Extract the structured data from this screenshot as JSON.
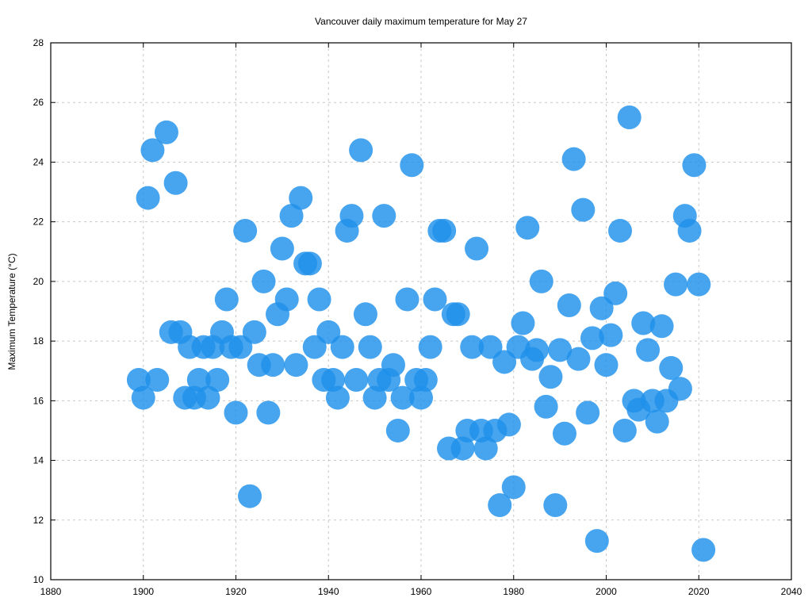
{
  "chart_data": {
    "type": "scatter",
    "title": "Vancouver daily maximum temperature for May 27",
    "xlabel": "",
    "ylabel": "Maximum Temperature (°C)",
    "xlim": [
      1880,
      2040
    ],
    "ylim": [
      10,
      28
    ],
    "xticks": [
      1880,
      1900,
      1920,
      1940,
      1960,
      1980,
      2000,
      2020,
      2040
    ],
    "yticks": [
      10,
      12,
      14,
      16,
      18,
      20,
      22,
      24,
      26,
      28
    ],
    "grid": true,
    "legend": "none",
    "marker_color": "#1e90ea",
    "points": [
      {
        "x": 1899,
        "y": 16.7
      },
      {
        "x": 1900,
        "y": 16.1
      },
      {
        "x": 1901,
        "y": 22.8
      },
      {
        "x": 1902,
        "y": 24.4
      },
      {
        "x": 1903,
        "y": 16.7
      },
      {
        "x": 1905,
        "y": 25.0
      },
      {
        "x": 1906,
        "y": 18.3
      },
      {
        "x": 1907,
        "y": 23.3
      },
      {
        "x": 1908,
        "y": 18.3
      },
      {
        "x": 1909,
        "y": 16.1
      },
      {
        "x": 1910,
        "y": 17.8
      },
      {
        "x": 1911,
        "y": 16.1
      },
      {
        "x": 1912,
        "y": 16.7
      },
      {
        "x": 1913,
        "y": 17.8
      },
      {
        "x": 1914,
        "y": 16.1
      },
      {
        "x": 1915,
        "y": 17.8
      },
      {
        "x": 1916,
        "y": 16.7
      },
      {
        "x": 1917,
        "y": 18.3
      },
      {
        "x": 1918,
        "y": 19.4
      },
      {
        "x": 1919,
        "y": 17.8
      },
      {
        "x": 1920,
        "y": 15.6
      },
      {
        "x": 1921,
        "y": 17.8
      },
      {
        "x": 1922,
        "y": 21.7
      },
      {
        "x": 1923,
        "y": 12.8
      },
      {
        "x": 1924,
        "y": 18.3
      },
      {
        "x": 1925,
        "y": 17.2
      },
      {
        "x": 1926,
        "y": 20.0
      },
      {
        "x": 1927,
        "y": 15.6
      },
      {
        "x": 1928,
        "y": 17.2
      },
      {
        "x": 1929,
        "y": 18.9
      },
      {
        "x": 1930,
        "y": 21.1
      },
      {
        "x": 1931,
        "y": 19.4
      },
      {
        "x": 1932,
        "y": 22.2
      },
      {
        "x": 1933,
        "y": 17.2
      },
      {
        "x": 1934,
        "y": 22.8
      },
      {
        "x": 1935,
        "y": 20.6
      },
      {
        "x": 1936,
        "y": 20.6
      },
      {
        "x": 1937,
        "y": 17.8
      },
      {
        "x": 1938,
        "y": 19.4
      },
      {
        "x": 1939,
        "y": 16.7
      },
      {
        "x": 1940,
        "y": 18.3
      },
      {
        "x": 1941,
        "y": 16.7
      },
      {
        "x": 1942,
        "y": 16.1
      },
      {
        "x": 1943,
        "y": 17.8
      },
      {
        "x": 1944,
        "y": 21.7
      },
      {
        "x": 1945,
        "y": 22.2
      },
      {
        "x": 1946,
        "y": 16.7
      },
      {
        "x": 1947,
        "y": 24.4
      },
      {
        "x": 1948,
        "y": 18.9
      },
      {
        "x": 1949,
        "y": 17.8
      },
      {
        "x": 1950,
        "y": 16.1
      },
      {
        "x": 1951,
        "y": 16.7
      },
      {
        "x": 1952,
        "y": 22.2
      },
      {
        "x": 1953,
        "y": 16.7
      },
      {
        "x": 1954,
        "y": 17.2
      },
      {
        "x": 1955,
        "y": 15.0
      },
      {
        "x": 1956,
        "y": 16.1
      },
      {
        "x": 1957,
        "y": 19.4
      },
      {
        "x": 1958,
        "y": 23.9
      },
      {
        "x": 1959,
        "y": 16.7
      },
      {
        "x": 1960,
        "y": 16.1
      },
      {
        "x": 1961,
        "y": 16.7
      },
      {
        "x": 1962,
        "y": 17.8
      },
      {
        "x": 1963,
        "y": 19.4
      },
      {
        "x": 1964,
        "y": 21.7
      },
      {
        "x": 1965,
        "y": 21.7
      },
      {
        "x": 1966,
        "y": 14.4
      },
      {
        "x": 1967,
        "y": 18.9
      },
      {
        "x": 1968,
        "y": 18.9
      },
      {
        "x": 1969,
        "y": 14.4
      },
      {
        "x": 1970,
        "y": 15.0
      },
      {
        "x": 1971,
        "y": 17.8
      },
      {
        "x": 1972,
        "y": 21.1
      },
      {
        "x": 1973,
        "y": 15.0
      },
      {
        "x": 1974,
        "y": 14.4
      },
      {
        "x": 1975,
        "y": 17.8
      },
      {
        "x": 1976,
        "y": 15.0
      },
      {
        "x": 1977,
        "y": 12.5
      },
      {
        "x": 1978,
        "y": 17.3
      },
      {
        "x": 1979,
        "y": 15.2
      },
      {
        "x": 1980,
        "y": 13.1
      },
      {
        "x": 1981,
        "y": 17.8
      },
      {
        "x": 1982,
        "y": 18.6
      },
      {
        "x": 1983,
        "y": 21.8
      },
      {
        "x": 1984,
        "y": 17.4
      },
      {
        "x": 1985,
        "y": 17.7
      },
      {
        "x": 1986,
        "y": 20.0
      },
      {
        "x": 1987,
        "y": 15.8
      },
      {
        "x": 1988,
        "y": 16.8
      },
      {
        "x": 1989,
        "y": 12.5
      },
      {
        "x": 1990,
        "y": 17.7
      },
      {
        "x": 1991,
        "y": 14.9
      },
      {
        "x": 1992,
        "y": 19.2
      },
      {
        "x": 1993,
        "y": 24.1
      },
      {
        "x": 1994,
        "y": 17.4
      },
      {
        "x": 1995,
        "y": 22.4
      },
      {
        "x": 1996,
        "y": 15.6
      },
      {
        "x": 1997,
        "y": 18.1
      },
      {
        "x": 1998,
        "y": 11.3
      },
      {
        "x": 1999,
        "y": 19.1
      },
      {
        "x": 2000,
        "y": 17.2
      },
      {
        "x": 2001,
        "y": 18.2
      },
      {
        "x": 2002,
        "y": 19.6
      },
      {
        "x": 2003,
        "y": 21.7
      },
      {
        "x": 2004,
        "y": 15.0
      },
      {
        "x": 2005,
        "y": 25.5
      },
      {
        "x": 2006,
        "y": 16.0
      },
      {
        "x": 2007,
        "y": 15.7
      },
      {
        "x": 2008,
        "y": 18.6
      },
      {
        "x": 2009,
        "y": 17.7
      },
      {
        "x": 2010,
        "y": 16.0
      },
      {
        "x": 2011,
        "y": 15.3
      },
      {
        "x": 2012,
        "y": 18.5
      },
      {
        "x": 2013,
        "y": 16.0
      },
      {
        "x": 2014,
        "y": 17.1
      },
      {
        "x": 2015,
        "y": 19.9
      },
      {
        "x": 2016,
        "y": 16.4
      },
      {
        "x": 2017,
        "y": 22.2
      },
      {
        "x": 2018,
        "y": 21.7
      },
      {
        "x": 2019,
        "y": 23.9
      },
      {
        "x": 2020,
        "y": 19.9
      },
      {
        "x": 2021,
        "y": 11.0
      }
    ]
  }
}
